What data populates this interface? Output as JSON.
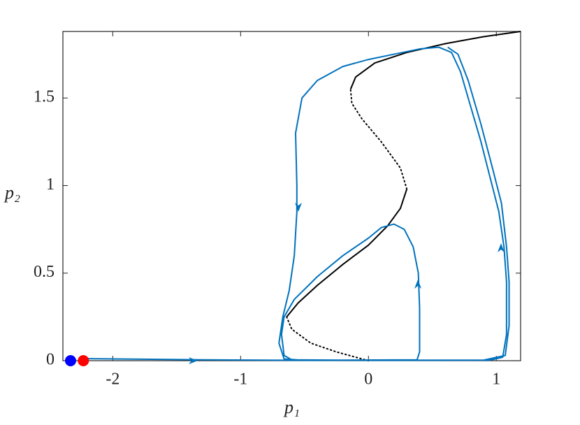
{
  "chart_data": {
    "type": "line",
    "xlabel": "p₁",
    "ylabel": "p₂",
    "xlim": [
      -2.39,
      1.19
    ],
    "ylim": [
      0,
      1.88
    ],
    "xticks": [
      -2,
      -1,
      0,
      1
    ],
    "yticks": [
      0,
      0.5,
      1,
      1.5
    ],
    "series": [
      {
        "color": "#000000",
        "linestyle": "solid",
        "x": [
          -0.64,
          -0.55,
          -0.4,
          -0.2,
          0,
          0.15,
          0.25,
          0.3
        ],
        "values": [
          0.25,
          0.33,
          0.43,
          0.55,
          0.66,
          0.77,
          0.87,
          0.98
        ]
      },
      {
        "color": "#000000",
        "linestyle": "dotted",
        "x": [
          0.3,
          0.25,
          0.1,
          -0.05,
          -0.13,
          -0.14
        ],
        "values": [
          0.98,
          1.1,
          1.25,
          1.38,
          1.47,
          1.55
        ]
      },
      {
        "color": "#000000",
        "linestyle": "solid",
        "x": [
          -0.14,
          -0.1,
          0.05,
          0.3,
          0.6,
          0.9,
          1.19
        ],
        "values": [
          1.55,
          1.62,
          1.7,
          1.76,
          1.81,
          1.85,
          1.88
        ]
      },
      {
        "color": "#000000",
        "linestyle": "dotted",
        "x": [
          -0.64,
          -0.6,
          -0.45,
          -0.25,
          -0.05,
          0
        ],
        "values": [
          0.25,
          0.18,
          0.1,
          0.05,
          0.01,
          0
        ]
      },
      {
        "color": "#0072bd",
        "linestyle": "solid",
        "x": [
          -2.23,
          -1.3,
          -0.5,
          0.38,
          0.4,
          0.4,
          0.39,
          0.35,
          0.28,
          0.2,
          0.1,
          0,
          -0.2,
          -0.4,
          -0.58,
          -0.66,
          -0.68,
          -0.66,
          -0.6,
          0,
          0.95,
          1.05,
          1.08,
          1.08,
          1.06,
          1.02,
          0.95,
          0.88,
          0.8,
          0.72,
          0.65,
          0.55,
          0.4,
          0.2,
          0,
          -0.2,
          -0.4,
          -0.52,
          -0.57,
          -0.56,
          -0.56,
          -0.58,
          -0.62,
          -0.67,
          -0.7,
          -0.66,
          -0.5,
          0.9,
          1.07,
          1.1,
          1.1,
          1.08,
          1.04,
          0.97,
          0.88,
          0.78,
          0.7,
          0.62
        ],
        "values": [
          0.012,
          0.005,
          0.002,
          0.005,
          0.05,
          0.3,
          0.5,
          0.65,
          0.75,
          0.78,
          0.76,
          0.7,
          0.6,
          0.48,
          0.35,
          0.25,
          0.15,
          0.03,
          0.005,
          0.002,
          0.003,
          0.02,
          0.15,
          0.45,
          0.65,
          0.85,
          1.05,
          1.25,
          1.45,
          1.65,
          1.76,
          1.79,
          1.78,
          1.75,
          1.72,
          1.68,
          1.6,
          1.5,
          1.3,
          1.0,
          0.85,
          0.6,
          0.4,
          0.25,
          0.1,
          0.01,
          0.002,
          0.003,
          0.03,
          0.2,
          0.45,
          0.65,
          0.9,
          1.1,
          1.35,
          1.6,
          1.75,
          1.79
        ]
      }
    ],
    "markers": [
      {
        "x": -2.33,
        "y": 0,
        "color": "#0000ff"
      },
      {
        "x": -2.23,
        "y": 0,
        "color": "#ff0000"
      }
    ]
  }
}
